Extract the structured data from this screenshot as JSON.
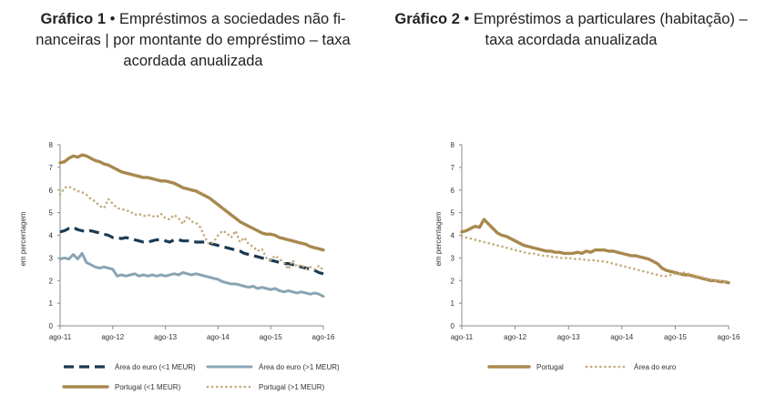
{
  "titles": [
    {
      "bold": "Gráfico 1",
      "bullet": " • ",
      "text": "Empréstimos a sociedades não fi-",
      "line2": "nanceiras | por montante do empréstimo – taxa",
      "line3": "acordada anualizada"
    },
    {
      "bold": "Gráfico 2",
      "bullet": " • ",
      "text": "Empréstimos a particulares (habitação) –",
      "line2": "taxa acordada anualizada"
    }
  ],
  "colors": {
    "navy": "#1b3a52",
    "steel": "#8aa4b4",
    "gold": "#a8884e",
    "gold_light": "#c4ab7e",
    "axis": "#888888"
  },
  "chart_data": [
    {
      "type": "line",
      "title": "Empréstimos a sociedades não financeiras | por montante do empréstimo – taxa acordada anualizada",
      "ylabel": "em percentagem",
      "ylim": [
        0,
        8
      ],
      "yticks": [
        "0",
        "1",
        "2",
        "3",
        "4",
        "5",
        "6",
        "7",
        "8"
      ],
      "xlim": [
        0,
        60
      ],
      "xticks": [
        {
          "label": "ago-11",
          "x": 0
        },
        {
          "label": "ago-12",
          "x": 12
        },
        {
          "label": "ago-13",
          "x": 24
        },
        {
          "label": "ago-14",
          "x": 36
        },
        {
          "label": "ago-15",
          "x": 48
        },
        {
          "label": "ago-16",
          "x": 60
        }
      ],
      "series": [
        {
          "name": "Área do euro (<1 MEUR)",
          "style": "dash",
          "color": "#1b3a52",
          "values": [
            4.15,
            4.2,
            4.3,
            4.35,
            4.25,
            4.2,
            4.15,
            4.2,
            4.15,
            4.1,
            4.05,
            4.0,
            3.9,
            3.9,
            3.85,
            3.9,
            3.85,
            3.8,
            3.75,
            3.7,
            3.7,
            3.75,
            3.8,
            3.8,
            3.75,
            3.7,
            3.8,
            3.8,
            3.75,
            3.75,
            3.75,
            3.7,
            3.7,
            3.7,
            3.65,
            3.6,
            3.55,
            3.5,
            3.45,
            3.4,
            3.35,
            3.3,
            3.2,
            3.15,
            3.1,
            3.05,
            3.0,
            2.95,
            2.9,
            2.85,
            2.8,
            2.75,
            2.75,
            2.7,
            2.65,
            2.6,
            2.55,
            2.5,
            2.45,
            2.35,
            2.3
          ]
        },
        {
          "name": "Área do euro (>1 MEUR)",
          "style": "solid-thin",
          "color": "#8aa4b4",
          "values": [
            2.95,
            3.0,
            2.95,
            3.15,
            2.95,
            3.2,
            2.8,
            2.7,
            2.6,
            2.55,
            2.6,
            2.55,
            2.5,
            2.2,
            2.25,
            2.2,
            2.25,
            2.3,
            2.2,
            2.25,
            2.2,
            2.25,
            2.2,
            2.25,
            2.2,
            2.25,
            2.3,
            2.25,
            2.35,
            2.3,
            2.25,
            2.3,
            2.25,
            2.2,
            2.15,
            2.1,
            2.05,
            1.95,
            1.9,
            1.85,
            1.85,
            1.8,
            1.75,
            1.7,
            1.75,
            1.65,
            1.7,
            1.65,
            1.6,
            1.65,
            1.55,
            1.5,
            1.55,
            1.5,
            1.45,
            1.5,
            1.45,
            1.4,
            1.45,
            1.4,
            1.3
          ]
        },
        {
          "name": "Portugal (<1 MEUR)",
          "style": "solid-thick",
          "color": "#a8884e",
          "values": [
            7.2,
            7.25,
            7.4,
            7.5,
            7.45,
            7.55,
            7.5,
            7.4,
            7.3,
            7.25,
            7.15,
            7.1,
            7.0,
            6.9,
            6.8,
            6.75,
            6.7,
            6.65,
            6.6,
            6.55,
            6.55,
            6.5,
            6.45,
            6.4,
            6.4,
            6.35,
            6.3,
            6.2,
            6.1,
            6.05,
            6.0,
            5.95,
            5.85,
            5.75,
            5.65,
            5.5,
            5.35,
            5.2,
            5.05,
            4.9,
            4.75,
            4.6,
            4.5,
            4.4,
            4.3,
            4.2,
            4.1,
            4.05,
            4.05,
            4.0,
            3.9,
            3.85,
            3.8,
            3.75,
            3.7,
            3.65,
            3.6,
            3.5,
            3.45,
            3.4,
            3.35
          ]
        },
        {
          "name": "Portugal (>1 MEUR)",
          "style": "dot",
          "color": "#c4ab7e",
          "values": [
            5.8,
            6.1,
            6.15,
            6.05,
            5.95,
            5.9,
            5.8,
            5.6,
            5.5,
            5.3,
            5.2,
            5.6,
            5.4,
            5.2,
            5.15,
            5.1,
            5.05,
            4.9,
            4.95,
            4.85,
            4.9,
            4.85,
            4.8,
            4.95,
            4.75,
            4.7,
            4.9,
            4.75,
            4.5,
            4.85,
            4.6,
            4.55,
            4.35,
            3.9,
            3.6,
            3.7,
            4.0,
            4.2,
            4.1,
            3.9,
            4.2,
            3.7,
            3.9,
            3.6,
            3.5,
            3.3,
            3.4,
            3.0,
            2.9,
            3.1,
            2.95,
            2.8,
            2.5,
            2.9,
            2.6,
            2.7,
            2.5,
            2.6,
            2.5,
            2.65,
            2.45
          ]
        }
      ],
      "legend_position": "bottom"
    },
    {
      "type": "line",
      "title": "Empréstimos a particulares (habitação) – taxa acordada anualizada",
      "ylabel": "em percentagem",
      "ylim": [
        0,
        8
      ],
      "yticks": [
        "0",
        "1",
        "2",
        "3",
        "4",
        "5",
        "6",
        "7",
        "8"
      ],
      "xlim": [
        0,
        60
      ],
      "xticks": [
        {
          "label": "ago-11",
          "x": 0
        },
        {
          "label": "ago-12",
          "x": 12
        },
        {
          "label": "ago-13",
          "x": 24
        },
        {
          "label": "ago-14",
          "x": 36
        },
        {
          "label": "ago-15",
          "x": 48
        },
        {
          "label": "ago-16",
          "x": 60
        }
      ],
      "series": [
        {
          "name": "Portugal",
          "style": "solid-thick",
          "color": "#a8884e",
          "values": [
            4.15,
            4.2,
            4.3,
            4.4,
            4.35,
            4.7,
            4.5,
            4.3,
            4.1,
            4.0,
            3.95,
            3.85,
            3.75,
            3.65,
            3.55,
            3.5,
            3.45,
            3.4,
            3.35,
            3.3,
            3.3,
            3.25,
            3.25,
            3.2,
            3.2,
            3.2,
            3.25,
            3.2,
            3.3,
            3.25,
            3.35,
            3.35,
            3.35,
            3.3,
            3.3,
            3.25,
            3.2,
            3.15,
            3.1,
            3.1,
            3.05,
            3.0,
            2.95,
            2.85,
            2.75,
            2.55,
            2.45,
            2.4,
            2.35,
            2.3,
            2.25,
            2.25,
            2.2,
            2.15,
            2.1,
            2.05,
            2.0,
            2.0,
            1.95,
            1.95,
            1.9
          ]
        },
        {
          "name": "Área do euro",
          "style": "dot",
          "color": "#c4ab7e",
          "values": [
            3.95,
            3.9,
            3.85,
            3.8,
            3.75,
            3.7,
            3.65,
            3.6,
            3.55,
            3.5,
            3.45,
            3.4,
            3.35,
            3.3,
            3.25,
            3.2,
            3.2,
            3.15,
            3.1,
            3.1,
            3.05,
            3.05,
            3.0,
            3.0,
            3.0,
            2.95,
            2.95,
            2.95,
            2.9,
            2.9,
            2.9,
            2.85,
            2.85,
            2.8,
            2.75,
            2.7,
            2.65,
            2.6,
            2.55,
            2.5,
            2.45,
            2.4,
            2.35,
            2.3,
            2.25,
            2.2,
            2.2,
            2.25,
            2.3,
            2.3,
            2.35,
            2.3,
            2.25,
            2.2,
            2.15,
            2.1,
            2.05,
            2.0,
            2.0,
            1.95,
            1.95
          ]
        }
      ],
      "legend_position": "bottom"
    }
  ]
}
